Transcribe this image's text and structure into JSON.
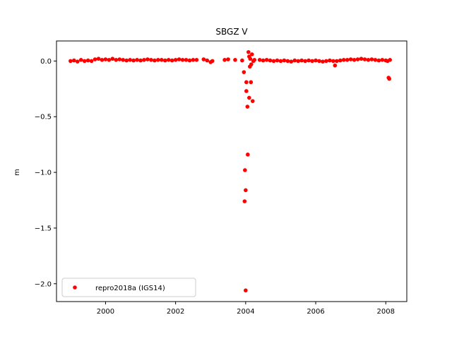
{
  "chart_data": {
    "type": "scatter",
    "title": "SBGZ V",
    "xlabel": "",
    "ylabel": "m",
    "xlim": [
      1998.6,
      2008.6
    ],
    "ylim": [
      -2.16,
      0.18
    ],
    "x_ticks": [
      2000,
      2002,
      2004,
      2006,
      2008
    ],
    "x_tick_labels": [
      "2000",
      "2002",
      "2004",
      "2006",
      "2008"
    ],
    "y_ticks": [
      0.0,
      -0.5,
      -1.0,
      -1.5,
      -2.0
    ],
    "y_tick_labels": [
      "0.0",
      "−0.5",
      "−1.0",
      "−1.5",
      "−2.0"
    ],
    "grid": false,
    "legend_position": "lower-left",
    "series": [
      {
        "name": "repro2018a (IGS14)",
        "color": "#ff0000",
        "marker": "circle",
        "points": [
          [
            1999.0,
            0.0
          ],
          [
            1999.1,
            0.005
          ],
          [
            1999.2,
            -0.005
          ],
          [
            1999.3,
            0.01
          ],
          [
            1999.4,
            0.0
          ],
          [
            1999.5,
            0.005
          ],
          [
            1999.6,
            0.0
          ],
          [
            1999.7,
            0.015
          ],
          [
            1999.8,
            0.02
          ],
          [
            1999.9,
            0.01
          ],
          [
            2000.0,
            0.015
          ],
          [
            2000.1,
            0.01
          ],
          [
            2000.2,
            0.02
          ],
          [
            2000.3,
            0.01
          ],
          [
            2000.4,
            0.015
          ],
          [
            2000.5,
            0.01
          ],
          [
            2000.6,
            0.005
          ],
          [
            2000.7,
            0.01
          ],
          [
            2000.8,
            0.005
          ],
          [
            2000.9,
            0.01
          ],
          [
            2001.0,
            0.005
          ],
          [
            2001.1,
            0.01
          ],
          [
            2001.2,
            0.015
          ],
          [
            2001.3,
            0.01
          ],
          [
            2001.4,
            0.005
          ],
          [
            2001.5,
            0.01
          ],
          [
            2001.6,
            0.01
          ],
          [
            2001.7,
            0.005
          ],
          [
            2001.8,
            0.01
          ],
          [
            2001.9,
            0.005
          ],
          [
            2002.0,
            0.01
          ],
          [
            2002.1,
            0.015
          ],
          [
            2002.2,
            0.01
          ],
          [
            2002.3,
            0.01
          ],
          [
            2002.4,
            0.005
          ],
          [
            2002.5,
            0.01
          ],
          [
            2002.6,
            0.01
          ],
          [
            2002.8,
            0.015
          ],
          [
            2002.9,
            0.005
          ],
          [
            2003.0,
            -0.01
          ],
          [
            2003.05,
            0.0
          ],
          [
            2003.4,
            0.01
          ],
          [
            2003.5,
            0.015
          ],
          [
            2003.7,
            0.01
          ],
          [
            2003.9,
            0.005
          ],
          [
            2003.95,
            -0.1
          ],
          [
            2003.97,
            -1.26
          ],
          [
            2003.98,
            -0.98
          ],
          [
            2004.0,
            -2.06
          ],
          [
            2004.0,
            -1.16
          ],
          [
            2004.02,
            -0.27
          ],
          [
            2004.05,
            -0.41
          ],
          [
            2004.06,
            -0.84
          ],
          [
            2004.08,
            0.08
          ],
          [
            2004.1,
            -0.33
          ],
          [
            2004.12,
            -0.05
          ],
          [
            2004.13,
            0.02
          ],
          [
            2004.15,
            -0.19
          ],
          [
            2004.16,
            -0.03
          ],
          [
            2004.18,
            0.06
          ],
          [
            2004.2,
            -0.36
          ],
          [
            2004.22,
            0.0
          ],
          [
            2004.02,
            -0.19
          ],
          [
            2004.1,
            0.04
          ],
          [
            2004.25,
            0.01
          ],
          [
            2004.4,
            0.01
          ],
          [
            2004.5,
            0.005
          ],
          [
            2004.6,
            0.01
          ],
          [
            2004.7,
            0.005
          ],
          [
            2004.8,
            0.0
          ],
          [
            2004.9,
            0.005
          ],
          [
            2005.0,
            0.0
          ],
          [
            2005.1,
            0.005
          ],
          [
            2005.2,
            0.0
          ],
          [
            2005.3,
            -0.005
          ],
          [
            2005.4,
            0.005
          ],
          [
            2005.5,
            0.0
          ],
          [
            2005.6,
            0.005
          ],
          [
            2005.7,
            0.0
          ],
          [
            2005.8,
            0.005
          ],
          [
            2005.9,
            0.0
          ],
          [
            2006.0,
            0.005
          ],
          [
            2006.1,
            0.0
          ],
          [
            2006.2,
            -0.005
          ],
          [
            2006.3,
            0.0
          ],
          [
            2006.4,
            0.005
          ],
          [
            2006.5,
            0.0
          ],
          [
            2006.55,
            -0.04
          ],
          [
            2006.6,
            0.0
          ],
          [
            2006.7,
            0.005
          ],
          [
            2006.8,
            0.01
          ],
          [
            2006.9,
            0.01
          ],
          [
            2007.0,
            0.015
          ],
          [
            2007.1,
            0.01
          ],
          [
            2007.2,
            0.015
          ],
          [
            2007.3,
            0.02
          ],
          [
            2007.4,
            0.015
          ],
          [
            2007.5,
            0.01
          ],
          [
            2007.6,
            0.015
          ],
          [
            2007.7,
            0.01
          ],
          [
            2007.8,
            0.005
          ],
          [
            2007.9,
            0.01
          ],
          [
            2008.0,
            0.005
          ],
          [
            2008.05,
            0.0
          ],
          [
            2008.08,
            -0.15
          ],
          [
            2008.1,
            -0.16
          ],
          [
            2008.12,
            0.01
          ]
        ]
      }
    ]
  }
}
